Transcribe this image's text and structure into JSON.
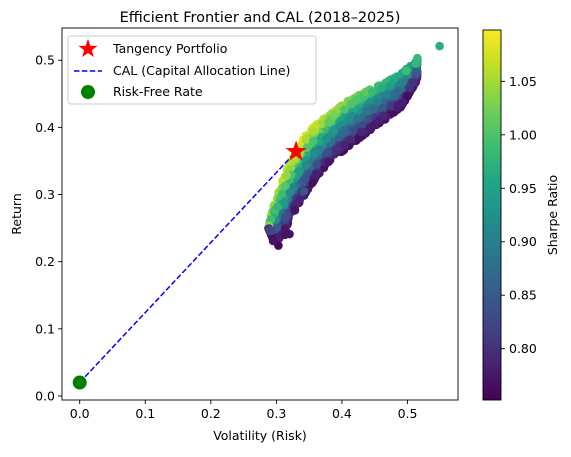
{
  "chart_data": {
    "type": "scatter",
    "title": "Efficient Frontier and CAL (2018–2025)",
    "xlabel": "Volatility (Risk)",
    "ylabel": "Return",
    "xlim": [
      -0.027,
      0.577
    ],
    "ylim": [
      -0.006,
      0.548
    ],
    "x_ticks": [
      "0.0",
      "0.1",
      "0.2",
      "0.3",
      "0.4",
      "0.5"
    ],
    "y_ticks": [
      "0.0",
      "0.1",
      "0.2",
      "0.3",
      "0.4",
      "0.5"
    ],
    "grid": false,
    "colorbar": {
      "label": "Sharpe Ratio",
      "colormap": "viridis",
      "range": [
        0.752,
        1.098
      ],
      "ticks": [
        "0.80",
        "0.85",
        "0.90",
        "0.95",
        "1.00",
        "1.05"
      ]
    },
    "legend": {
      "position": "upper-left",
      "entries": [
        {
          "label": "Tangency Portfolio",
          "marker": "star",
          "color": "#ff0000"
        },
        {
          "label": "CAL (Capital Allocation Line)",
          "marker": "dashed-line",
          "color": "#0000ff"
        },
        {
          "label": "Risk-Free Rate",
          "marker": "circle",
          "color": "#008000"
        }
      ]
    },
    "frontier_envelope": {
      "sharpe_color_scale": "viridis",
      "upper_edge": [
        [
          0.288,
          0.25
        ],
        [
          0.29,
          0.262
        ],
        [
          0.295,
          0.282
        ],
        [
          0.305,
          0.31
        ],
        [
          0.315,
          0.335
        ],
        [
          0.33,
          0.365
        ],
        [
          0.345,
          0.39
        ],
        [
          0.365,
          0.408
        ],
        [
          0.385,
          0.422
        ],
        [
          0.41,
          0.44
        ],
        [
          0.44,
          0.455
        ],
        [
          0.47,
          0.47
        ],
        [
          0.49,
          0.48
        ],
        [
          0.515,
          0.5
        ]
      ],
      "lower_edge": [
        [
          0.288,
          0.25
        ],
        [
          0.292,
          0.238
        ],
        [
          0.3,
          0.228
        ],
        [
          0.31,
          0.238
        ],
        [
          0.318,
          0.255
        ],
        [
          0.33,
          0.278
        ],
        [
          0.345,
          0.302
        ],
        [
          0.365,
          0.33
        ],
        [
          0.385,
          0.352
        ],
        [
          0.41,
          0.372
        ],
        [
          0.44,
          0.393
        ],
        [
          0.47,
          0.415
        ],
        [
          0.49,
          0.43
        ],
        [
          0.515,
          0.47
        ]
      ],
      "outlier_points": [
        [
          0.549,
          0.521,
          0.97
        ],
        [
          0.515,
          0.503,
          0.98
        ],
        [
          0.513,
          0.495,
          0.98
        ],
        [
          0.498,
          0.484,
          0.99
        ],
        [
          0.342,
          0.305,
          0.84
        ],
        [
          0.313,
          0.24,
          0.77
        ],
        [
          0.303,
          0.224,
          0.76
        ],
        [
          0.295,
          0.231,
          0.77
        ],
        [
          0.32,
          0.241,
          0.77
        ]
      ]
    },
    "tangency_portfolio": {
      "x": 0.33,
      "y": 0.364,
      "sharpe": 1.0
    },
    "cal": {
      "x": [
        0.0,
        0.33
      ],
      "y": [
        0.02,
        0.364
      ]
    },
    "risk_free_rate": {
      "x": 0.0,
      "y": 0.02
    }
  }
}
